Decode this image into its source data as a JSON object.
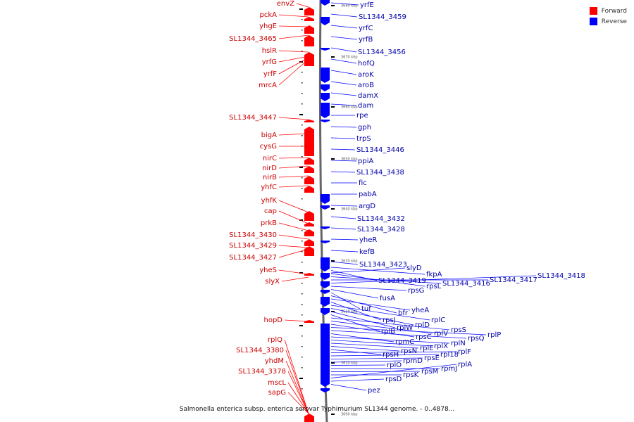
{
  "title": "Salmonella enterica subsp. enterica serovar Typhimurium SL1344 genome. - 0..4878...",
  "legend": [
    {
      "label": "Forward",
      "color": "#ff0000"
    },
    {
      "label": "Reverse",
      "color": "#0000ff"
    }
  ],
  "colors": {
    "forward": "#ff0000",
    "forward_text": "#cc0000",
    "reverse": "#0000ff",
    "reverse_text": "#0000aa",
    "backbone": "#888888"
  },
  "ticks": [
    "3680 kbp",
    "3670 kbp",
    "3660 kbp",
    "3650 kbp",
    "3640 kbp",
    "3630 kbp",
    "3620 kbp",
    "3610 kbp",
    "3600 kbp"
  ],
  "forward_genes": [
    "envZ",
    "pckA",
    "yhgE",
    "SL1344_3465",
    "hslR",
    "yrfG",
    "yrfF",
    "mrcA",
    "SL1344_3447",
    "bigA",
    "cysG",
    "nirC",
    "nirD",
    "nirB",
    "yhfC",
    "yhfK",
    "cap",
    "prkB",
    "SL1344_3430",
    "SL1344_3429",
    "SL1344_3427",
    "yheS",
    "slyX",
    "hopD",
    "rplQ",
    "SL1344_3380",
    "yhdM",
    "SL1344_3378",
    "mscL",
    "sapG"
  ],
  "reverse_genes": [
    "yrfE",
    "SL1344_3459",
    "yrfC",
    "yrfB",
    "SL1344_3456",
    "hofQ",
    "aroK",
    "aroB",
    "damX",
    "dam",
    "rpe",
    "gph",
    "trpS",
    "SL1344_3446",
    "ppiA",
    "SL1344_3438",
    "fic",
    "pabA",
    "argD",
    "SL1344_3432",
    "SL1344_3428",
    "yheR",
    "kefB",
    "SL1344_3423",
    "slyD",
    "fkpA",
    "SL1344_3419",
    "rpsL",
    "SL1344_3416",
    "SL1344_3417",
    "SL1344_3418",
    "rpsG",
    "fusA",
    "tuf",
    "bfr",
    "yheA",
    "rpsJ",
    "rplC",
    "rplD",
    "rplW",
    "rplB",
    "rpsS",
    "rplV",
    "rpsC",
    "rplP",
    "rpsQ",
    "rpmC",
    "rplN",
    "rplX",
    "rplE",
    "rpsN",
    "rpsH",
    "rplF",
    "rpl18",
    "rpsE",
    "rpmD",
    "rplO",
    "rpmJ",
    "rpsM",
    "rpsK",
    "rplA",
    "rpsD",
    "pez"
  ]
}
